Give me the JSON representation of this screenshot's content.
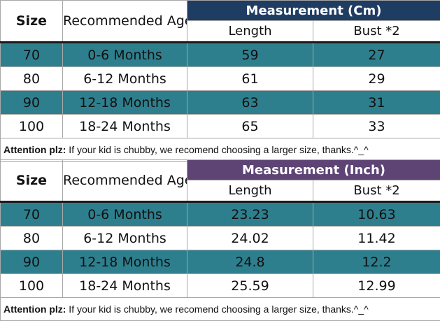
{
  "colors": {
    "cm_header_bg": "#1f3c63",
    "inch_header_bg": "#5d4475",
    "teal_row": "#2e7f8e",
    "white_row": "#ffffff",
    "border": "#a7a7a7"
  },
  "headers": {
    "size": "Size",
    "recommended_age": "Recommended Age",
    "length": "Length",
    "bust": "Bust *2"
  },
  "tables": [
    {
      "measurement_title": "Measurement (Cm)",
      "rows": [
        {
          "size": "70",
          "age": "0-6 Months",
          "length": "59",
          "bust": "27"
        },
        {
          "size": "80",
          "age": "6-12 Months",
          "length": "61",
          "bust": "29"
        },
        {
          "size": "90",
          "age": "12-18 Months",
          "length": "63",
          "bust": "31"
        },
        {
          "size": "100",
          "age": "18-24 Months",
          "length": "65",
          "bust": "33"
        }
      ],
      "note_label": "Attention plz:",
      "note_text": " If your kid is chubby, we recomend choosing a larger size, thanks.^_^"
    },
    {
      "measurement_title": "Measurement (Inch)",
      "rows": [
        {
          "size": "70",
          "age": "0-6 Months",
          "length": "23.23",
          "bust": "10.63"
        },
        {
          "size": "80",
          "age": "6-12 Months",
          "length": "24.02",
          "bust": "11.42"
        },
        {
          "size": "90",
          "age": "12-18 Months",
          "length": "24.8",
          "bust": "12.2"
        },
        {
          "size": "100",
          "age": "18-24 Months",
          "length": "25.59",
          "bust": "12.99"
        }
      ],
      "note_label": "Attention plz:",
      "note_text": " If your kid is chubby, we recomend choosing a larger size, thanks.^_^"
    }
  ]
}
